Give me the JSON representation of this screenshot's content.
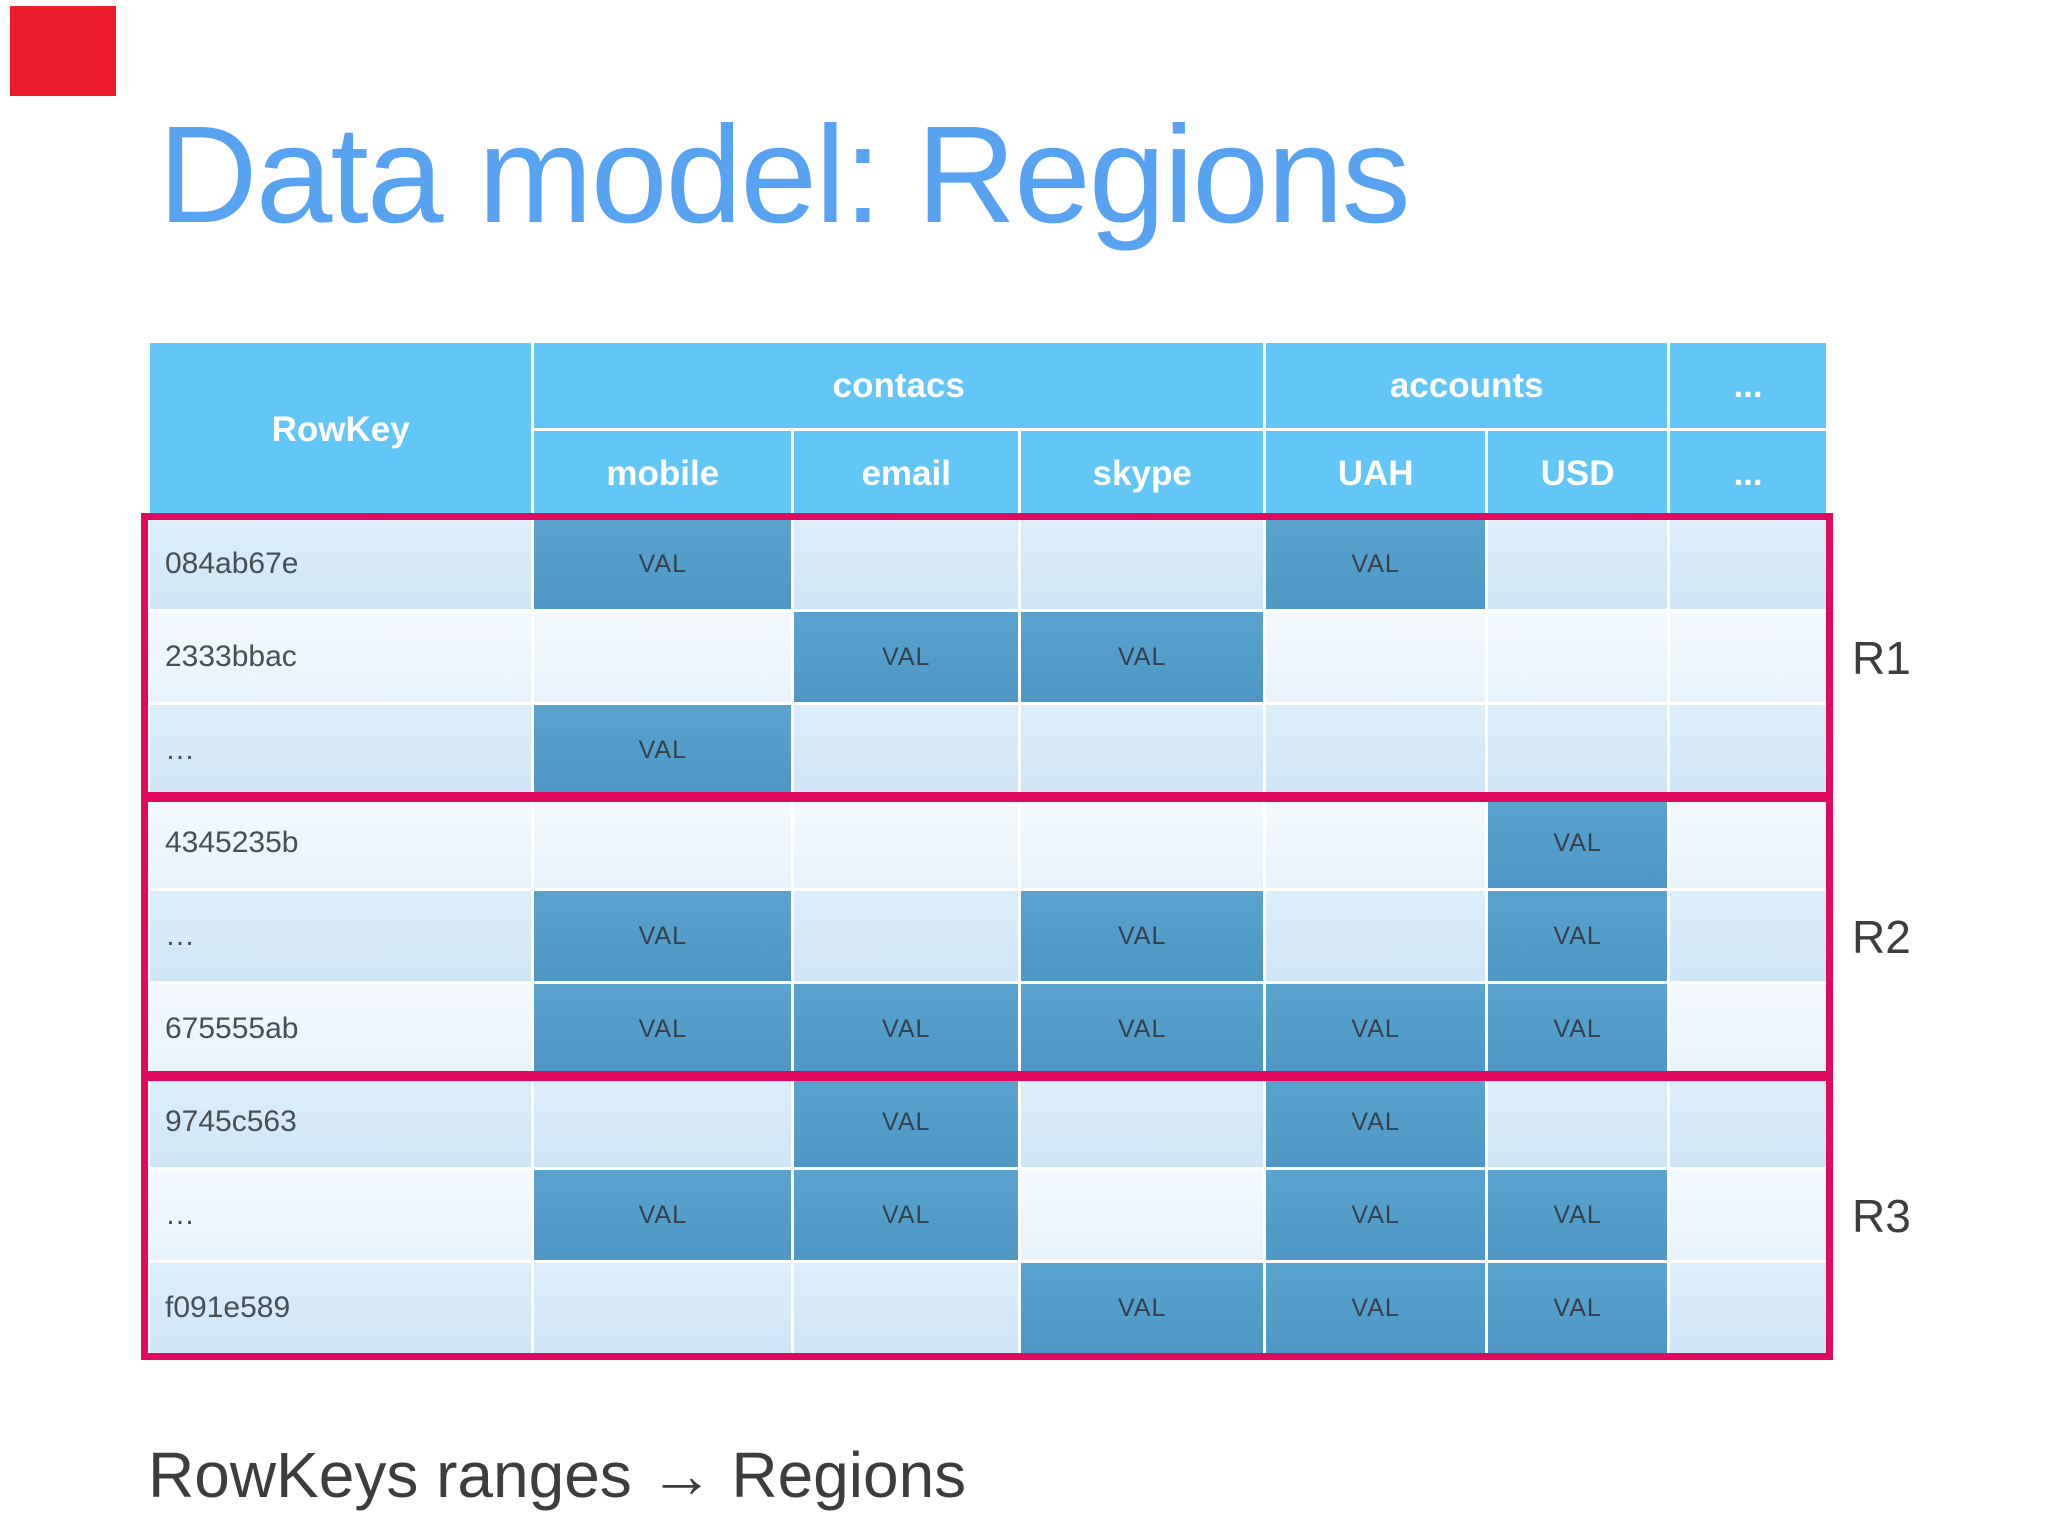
{
  "slide": {
    "title": "Data model: Regions",
    "footer": "RowKeys ranges → Regions",
    "colors": {
      "title_blue": "#57a3f2",
      "header_blue": "#62c6f7",
      "val_blue": "#539ac6",
      "row_light": "#d5e9f8",
      "row_lighter": "#eef5fc",
      "region_pink": "#e20a60",
      "decor_red": "#ec1c2c",
      "text_dark": "#3d3d3d"
    }
  },
  "table": {
    "header": {
      "row_key": "RowKey",
      "groups": [
        {
          "label": "contacs"
        },
        {
          "label": "accounts"
        },
        {
          "label": "..."
        }
      ],
      "columns": [
        "mobile",
        "email",
        "skype",
        "UAH",
        "USD",
        "..."
      ]
    },
    "rows": [
      {
        "key": "084ab67e",
        "vals": [
          "VAL",
          null,
          null,
          "VAL",
          null,
          null
        ]
      },
      {
        "key": "2333bbac",
        "vals": [
          null,
          "VAL",
          "VAL",
          null,
          null,
          null
        ]
      },
      {
        "key": "…",
        "vals": [
          "VAL",
          null,
          null,
          null,
          null,
          null
        ]
      },
      {
        "key": "4345235b",
        "vals": [
          null,
          null,
          null,
          null,
          "VAL",
          null
        ]
      },
      {
        "key": "…",
        "vals": [
          "VAL",
          null,
          "VAL",
          null,
          "VAL",
          null
        ]
      },
      {
        "key": "675555ab",
        "vals": [
          "VAL",
          "VAL",
          "VAL",
          "VAL",
          "VAL",
          null
        ]
      },
      {
        "key": "9745c563",
        "vals": [
          null,
          "VAL",
          null,
          "VAL",
          null,
          null
        ]
      },
      {
        "key": "…",
        "vals": [
          "VAL",
          "VAL",
          null,
          "VAL",
          "VAL",
          null
        ]
      },
      {
        "key": "f091e589",
        "vals": [
          null,
          null,
          "VAL",
          "VAL",
          "VAL",
          null
        ]
      }
    ],
    "regions": [
      {
        "label": "R1"
      },
      {
        "label": "R2"
      },
      {
        "label": "R3"
      }
    ]
  }
}
